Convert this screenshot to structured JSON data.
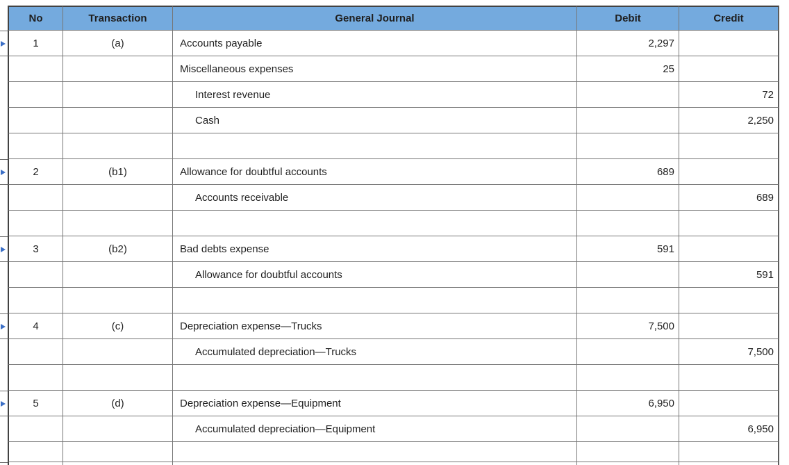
{
  "colors": {
    "header_bg": "#74aade",
    "grid_border": "#767676",
    "outer_border": "#424242",
    "marker_blue": "#3b6fc6",
    "text": "#1f1f1f"
  },
  "icons": {
    "row_marker": "blue-right-arrow"
  },
  "table": {
    "header": {
      "no": "No",
      "transaction": "Transaction",
      "journal": "General Journal",
      "debit": "Debit",
      "credit": "Credit"
    },
    "rows": [
      {
        "no": "1",
        "transaction": "(a)",
        "account": "Accounts payable",
        "indent": false,
        "debit": "2,297",
        "credit": "",
        "marker": true
      },
      {
        "no": "",
        "transaction": "",
        "account": "Miscellaneous expenses",
        "indent": false,
        "debit": "25",
        "credit": "",
        "marker": false
      },
      {
        "no": "",
        "transaction": "",
        "account": "Interest revenue",
        "indent": true,
        "debit": "",
        "credit": "72",
        "marker": false
      },
      {
        "no": "",
        "transaction": "",
        "account": "Cash",
        "indent": true,
        "debit": "",
        "credit": "2,250",
        "marker": false
      },
      {
        "no": "",
        "transaction": "",
        "account": "",
        "indent": false,
        "debit": "",
        "credit": "",
        "marker": false,
        "spacer": true
      },
      {
        "no": "2",
        "transaction": "(b1)",
        "account": "Allowance for doubtful accounts",
        "indent": false,
        "debit": "689",
        "credit": "",
        "marker": true
      },
      {
        "no": "",
        "transaction": "",
        "account": "Accounts receivable",
        "indent": true,
        "debit": "",
        "credit": "689",
        "marker": false
      },
      {
        "no": "",
        "transaction": "",
        "account": "",
        "indent": false,
        "debit": "",
        "credit": "",
        "marker": false,
        "spacer": true
      },
      {
        "no": "3",
        "transaction": "(b2)",
        "account": "Bad debts expense",
        "indent": false,
        "debit": "591",
        "credit": "",
        "marker": true
      },
      {
        "no": "",
        "transaction": "",
        "account": "Allowance for doubtful accounts",
        "indent": true,
        "debit": "",
        "credit": "591",
        "marker": false
      },
      {
        "no": "",
        "transaction": "",
        "account": "",
        "indent": false,
        "debit": "",
        "credit": "",
        "marker": false,
        "spacer": true
      },
      {
        "no": "4",
        "transaction": "(c)",
        "account": "Depreciation expense—Trucks",
        "indent": false,
        "debit": "7,500",
        "credit": "",
        "marker": true
      },
      {
        "no": "",
        "transaction": "",
        "account": "Accumulated depreciation—Trucks",
        "indent": true,
        "debit": "",
        "credit": "7,500",
        "marker": false
      },
      {
        "no": "",
        "transaction": "",
        "account": "",
        "indent": false,
        "debit": "",
        "credit": "",
        "marker": false,
        "spacer": true
      },
      {
        "no": "5",
        "transaction": "(d)",
        "account": "Depreciation expense—Equipment",
        "indent": false,
        "debit": "6,950",
        "credit": "",
        "marker": true
      },
      {
        "no": "",
        "transaction": "",
        "account": "Accumulated depreciation—Equipment",
        "indent": true,
        "debit": "",
        "credit": "6,950",
        "marker": false
      },
      {
        "no": "",
        "transaction": "",
        "account": "",
        "indent": false,
        "debit": "",
        "credit": "",
        "marker": false,
        "spacer": true,
        "short": true
      },
      {
        "no": "",
        "transaction": "",
        "account": "",
        "indent": false,
        "debit": "",
        "credit": "",
        "marker": true,
        "spacer": true,
        "partial": true
      }
    ]
  }
}
